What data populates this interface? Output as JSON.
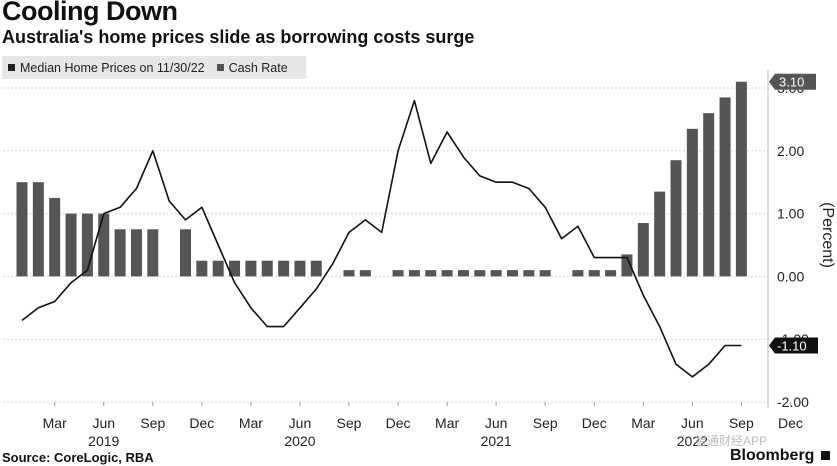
{
  "header": {
    "title": "Cooling Down",
    "subtitle": "Australia's home prices slide as borrowing costs surge"
  },
  "footer": {
    "source": "Source: CoreLogic, RBA",
    "brand": "Bloomberg",
    "watermark": "智通财经APP"
  },
  "colors": {
    "bar": "#555555",
    "line": "#111111",
    "grid": "#d9d9d9",
    "legend_bg": "#e6e6e6"
  },
  "chart_data": {
    "type": "bar",
    "title": "Cooling Down",
    "subtitle": "Australia's home prices slide as borrowing costs surge",
    "ylabel": "(Percent)",
    "ylim": [
      -2.0,
      3.0
    ],
    "yticks": [
      3.0,
      2.0,
      1.0,
      0.0,
      -1.0,
      -2.0
    ],
    "ytick_labels": [
      "3.00",
      "2.00",
      "1.00",
      "0.00",
      "-1.00",
      "-2.00"
    ],
    "grid": true,
    "legend_position": "top-left",
    "x_tick_labels": [
      "Mar",
      "Jun",
      "Sep",
      "Dec",
      "Mar",
      "Jun",
      "Sep",
      "Dec",
      "Mar",
      "Jun",
      "Sep",
      "Dec",
      "Mar",
      "Jun",
      "Sep",
      "Dec"
    ],
    "x_tick_months": [
      2,
      5,
      8,
      11,
      14,
      17,
      20,
      23,
      26,
      29,
      32,
      35,
      38,
      41,
      44,
      47
    ],
    "year_labels": [
      "2019",
      "2020",
      "2021",
      "2022"
    ],
    "year_label_months": [
      5,
      17,
      29,
      41
    ],
    "series": [
      {
        "name": "Cash Rate",
        "kind": "bar",
        "months": [
          0,
          1,
          2,
          3,
          4,
          5,
          6,
          7,
          8,
          9,
          10,
          11,
          12,
          13,
          14,
          15,
          16,
          17,
          18,
          19,
          20,
          21,
          22,
          23,
          24,
          25,
          26,
          27,
          28,
          29,
          30,
          31,
          32,
          33,
          34,
          35,
          36,
          37,
          38,
          39,
          40,
          41,
          42,
          43,
          44
        ],
        "values": [
          1.5,
          1.5,
          1.25,
          1.0,
          1.0,
          1.0,
          0.75,
          0.75,
          0.75,
          null,
          0.75,
          0.25,
          0.25,
          0.25,
          0.25,
          0.25,
          0.25,
          0.25,
          0.25,
          null,
          0.1,
          0.1,
          null,
          0.1,
          0.1,
          0.1,
          0.1,
          0.1,
          0.1,
          0.1,
          0.1,
          0.1,
          0.1,
          null,
          0.1,
          0.1,
          0.1,
          0.35,
          0.85,
          1.35,
          1.85,
          2.35,
          2.6,
          2.85,
          3.1
        ]
      },
      {
        "name": "Median Home Prices on 11/30/22",
        "kind": "line",
        "months": [
          0,
          1,
          2,
          3,
          4,
          5,
          6,
          7,
          8,
          9,
          10,
          11,
          12,
          13,
          14,
          15,
          16,
          17,
          18,
          19,
          20,
          21,
          22,
          23,
          24,
          25,
          26,
          27,
          28,
          29,
          30,
          31,
          32,
          33,
          34,
          35,
          36,
          37,
          38,
          39,
          40,
          41,
          42,
          43,
          44
        ],
        "values": [
          -0.7,
          -0.5,
          -0.4,
          -0.1,
          0.1,
          1.0,
          1.1,
          1.4,
          2.0,
          1.2,
          0.9,
          1.1,
          0.5,
          -0.1,
          -0.5,
          -0.8,
          -0.8,
          -0.5,
          -0.2,
          0.2,
          0.7,
          0.9,
          0.7,
          2.0,
          2.8,
          1.8,
          2.3,
          1.9,
          1.6,
          1.5,
          1.5,
          1.4,
          1.1,
          0.6,
          0.8,
          0.3,
          0.3,
          0.3,
          -0.3,
          -0.8,
          -1.4,
          -1.6,
          -1.4,
          -1.1,
          -1.1
        ]
      }
    ],
    "end_labels": {
      "cash_rate": "3.10",
      "home_prices": "-1.10"
    }
  }
}
